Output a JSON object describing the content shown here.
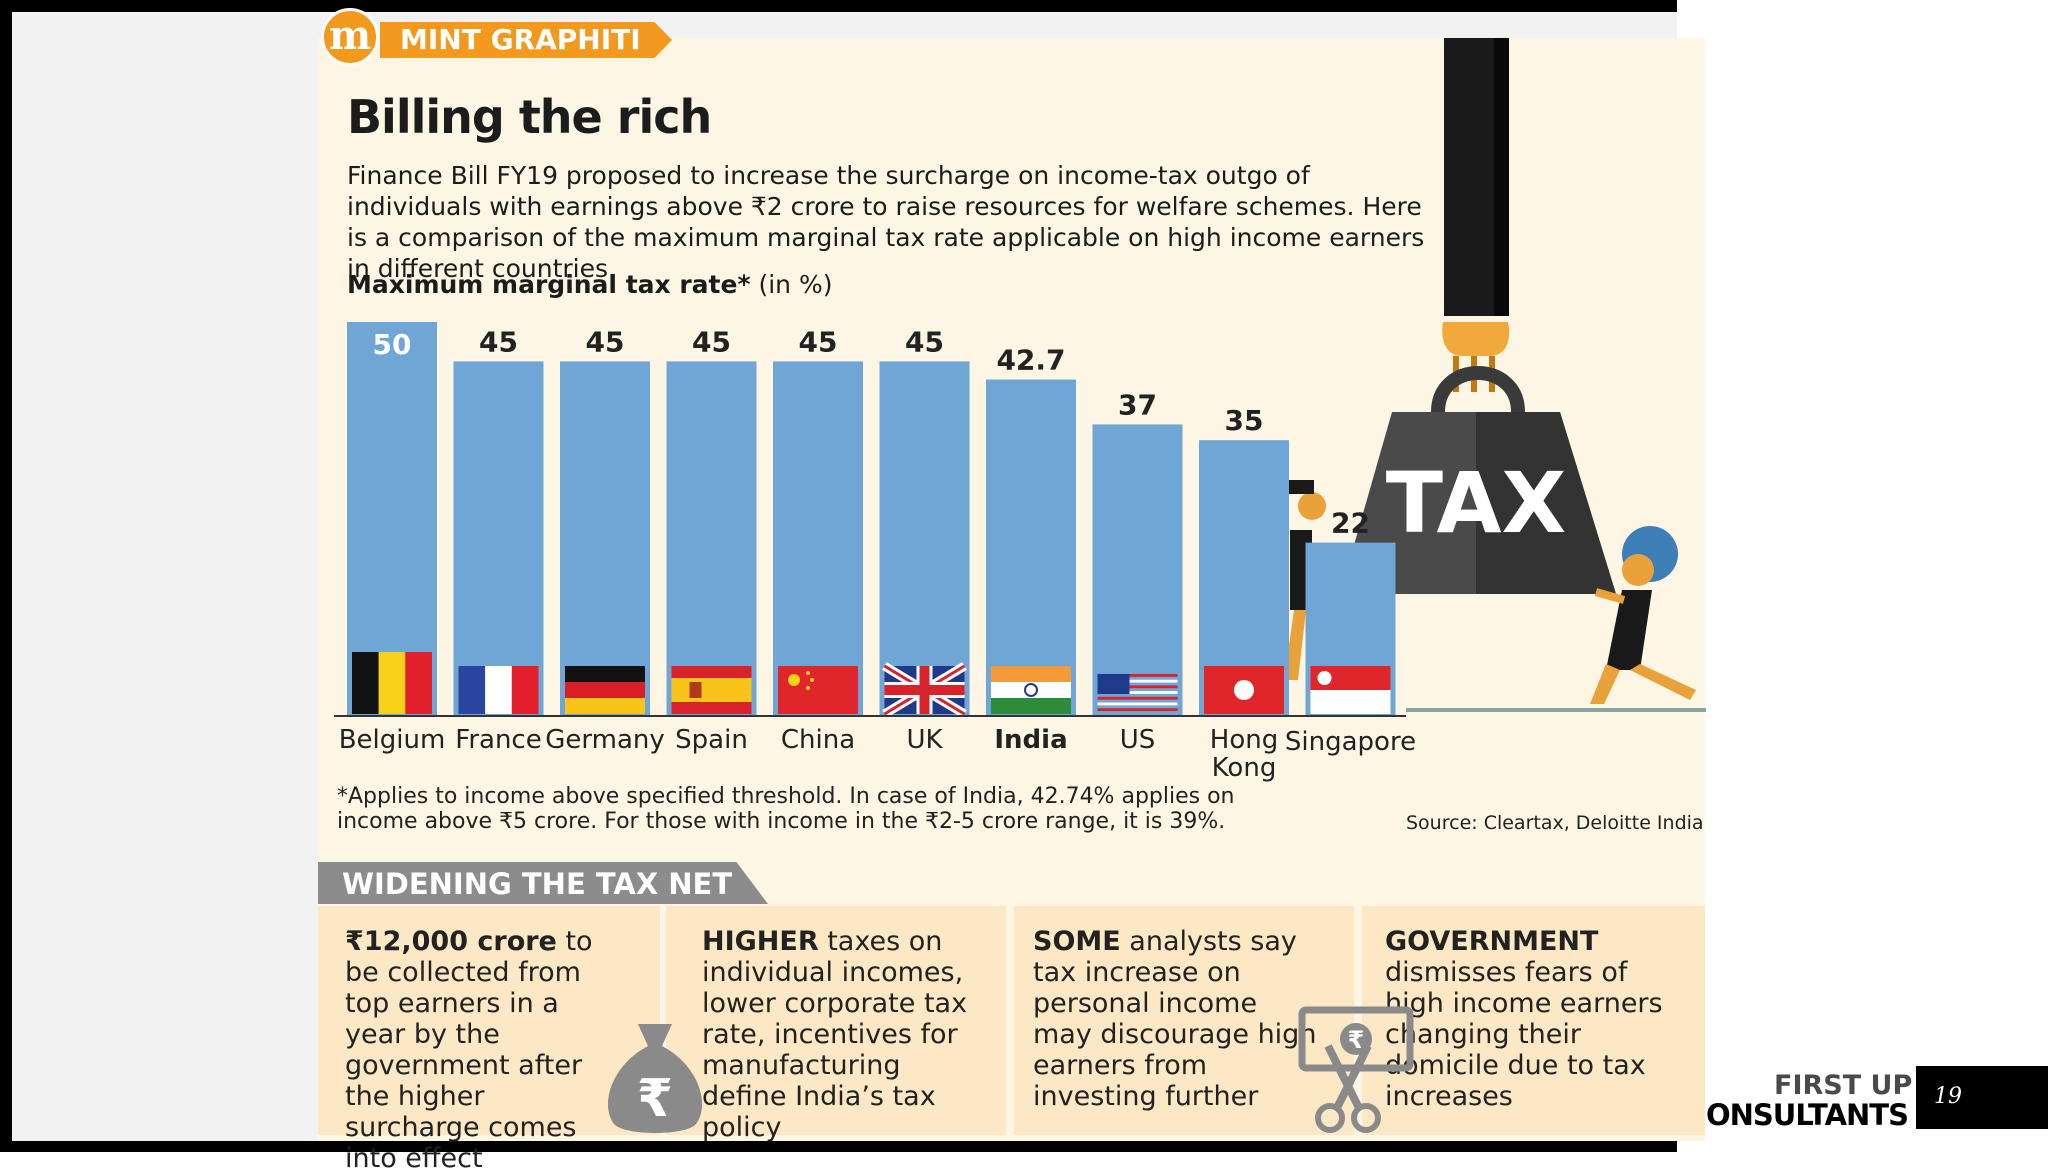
{
  "brand": {
    "logo_letter": "m",
    "name": "MINT GRAPHITI"
  },
  "title": "Billing the rich",
  "description": "Finance Bill FY19 proposed to increase the surcharge on income-tax outgo of individuals with earnings above ₹2 crore to raise resources for welfare schemes. Here is a comparison of the maximum marginal tax rate applicable on high income earners in different countries.",
  "subhead": {
    "bold": "Maximum marginal tax rate*",
    "normal": " (in %)"
  },
  "chart_data": {
    "type": "bar",
    "categories": [
      "Belgium",
      "France",
      "Germany",
      "Spain",
      "China",
      "UK",
      "India",
      "US",
      "Hong Kong",
      "Singapore"
    ],
    "values": [
      50,
      45,
      45,
      45,
      45,
      45,
      42.7,
      37,
      35,
      22
    ],
    "value_labels": [
      "50",
      "45",
      "45",
      "45",
      "45",
      "45",
      "42.7",
      "37",
      "35",
      "22"
    ],
    "ylim": [
      0,
      50
    ],
    "highlight": "India",
    "bar_color": "#6fa6d6",
    "grid": false
  },
  "footnote": "*Applies to income above specified threshold. In case of India, 42.74% applies on income above ₹5 crore. For those with income in the ₹2-5 crore range, it is 39%.",
  "source": "Source: Cleartax, Deloitte India",
  "illustration": {
    "weight_label": "TAX"
  },
  "net_section": {
    "title": "WIDENING THE TAX NET",
    "boxes": [
      {
        "bold": "₹12,000 crore",
        "text": " to be collected from top earners in a year by the government after the higher surcharge comes into effect"
      },
      {
        "bold": "HIGHER",
        "text": " taxes on individual incomes, lower corporate tax rate, incentives for manufacturing define India’s tax policy"
      },
      {
        "bold": "SOME",
        "text": " analysts say tax increase on personal income may discourage high earners from investing further"
      },
      {
        "bold": "GOVERNMENT",
        "text": " dismisses fears of high income earners changing their domicile due to tax increases"
      }
    ],
    "icons": [
      "money-bag-icon",
      "scissors-cutting-rupee-note-icon"
    ]
  },
  "footer": {
    "company_line1": "FIRST UP",
    "company_line2": "ONSULTANTS",
    "page_number": "19"
  },
  "colors": {
    "brand_orange": "#f39a1e",
    "panel_bg": "#fdf6e4",
    "box_bg": "#fce8c4",
    "band_gray": "#8c8c8c"
  }
}
